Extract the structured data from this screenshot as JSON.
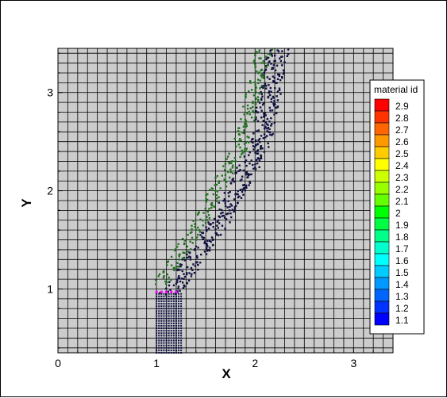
{
  "chart_data": {
    "type": "scatter",
    "title": "",
    "xlabel": "X",
    "ylabel": "Y",
    "xlim": [
      0,
      3.4
    ],
    "ylim": [
      0.35,
      3.45
    ],
    "xticks": [
      "0",
      "1",
      "2",
      "3"
    ],
    "yticks": [
      "1",
      "2",
      "3"
    ],
    "grid": true,
    "background_mesh_color": "#cccccc",
    "legend": {
      "title": "material id",
      "placement": "right",
      "levels": [
        "2.9",
        "2.8",
        "2.7",
        "2.6",
        "2.5",
        "2.4",
        "2.3",
        "2.2",
        "2.1",
        "2",
        "1.9",
        "1.8",
        "1.7",
        "1.6",
        "1.5",
        "1.4",
        "1.3",
        "1.2",
        "1.1"
      ],
      "colors": [
        "#ff0000",
        "#ff3300",
        "#ff6600",
        "#ff9900",
        "#ffcc00",
        "#ffff00",
        "#ccff00",
        "#99ff00",
        "#66ff00",
        "#00ff00",
        "#00ff44",
        "#00ff88",
        "#00ffcc",
        "#00ffff",
        "#00ccff",
        "#0099ff",
        "#0066ff",
        "#0033ff",
        "#0000ff"
      ]
    },
    "series": [
      {
        "material": 1,
        "color": "#101040",
        "description_points": {
          "lower_block": {
            "x_range": [
              1.0,
              1.25
            ],
            "y_range": [
              0.35,
              0.97
            ]
          },
          "band_line": [
            [
              1.1,
              0.95
            ],
            [
              1.6,
              1.7
            ],
            [
              2.0,
              2.45
            ],
            [
              2.2,
              3.45
            ]
          ]
        }
      },
      {
        "material": 2,
        "color": "#207020",
        "description_points": {
          "band_line": [
            [
              1.05,
              1.05
            ],
            [
              1.45,
              1.7
            ],
            [
              1.85,
              2.45
            ],
            [
              2.1,
              3.45
            ]
          ]
        }
      }
    ],
    "interface_color": "#ff00ff"
  }
}
